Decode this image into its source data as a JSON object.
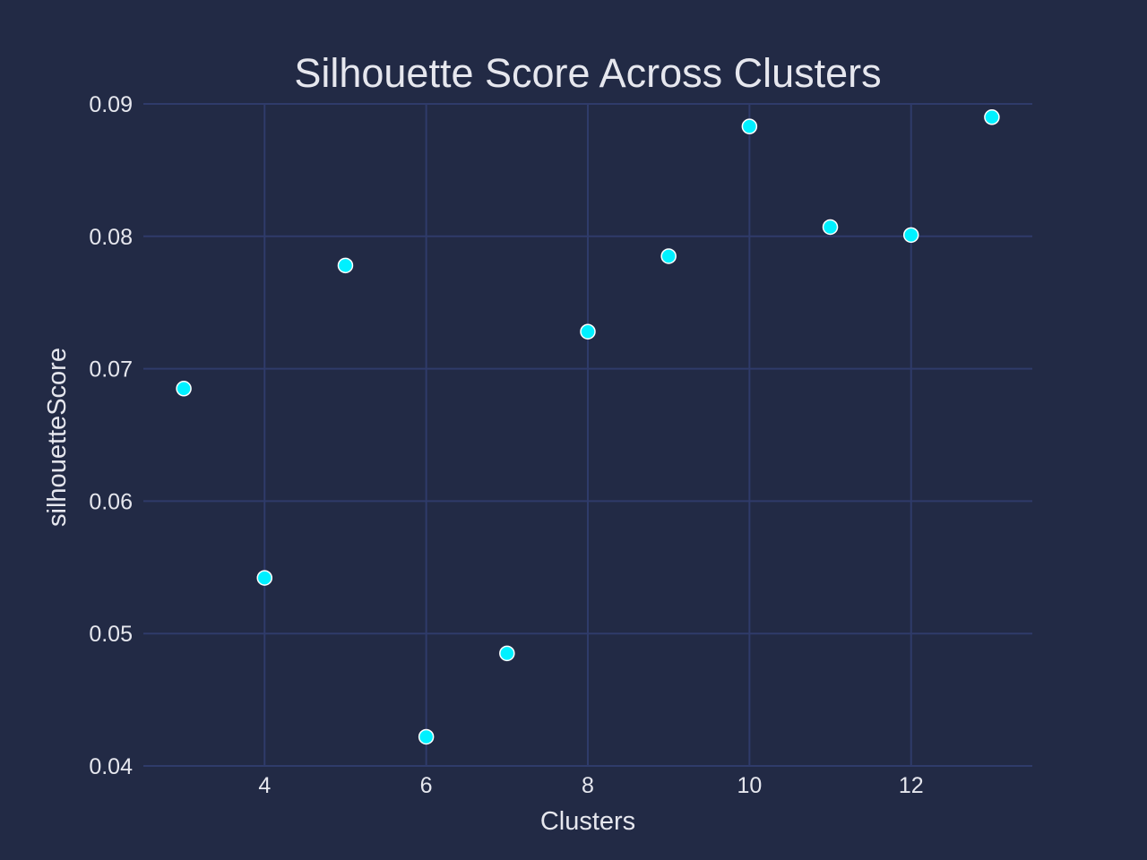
{
  "chart_data": {
    "type": "scatter",
    "title": "Silhouette Score Across Clusters",
    "xlabel": "Clusters",
    "ylabel": "silhouetteScore",
    "x": [
      3,
      4,
      5,
      6,
      7,
      8,
      9,
      10,
      11,
      12,
      13
    ],
    "y": [
      0.0685,
      0.0542,
      0.0778,
      0.0422,
      0.0485,
      0.0728,
      0.0785,
      0.0883,
      0.0807,
      0.0801,
      0.089
    ],
    "xlim": [
      2.5,
      13.5
    ],
    "ylim": [
      0.04,
      0.09
    ],
    "xticks": [
      4,
      6,
      8,
      10,
      12
    ],
    "xtick_labels": [
      "4",
      "6",
      "8",
      "10",
      "12"
    ],
    "yticks": [
      0.04,
      0.05,
      0.06,
      0.07,
      0.08,
      0.09
    ],
    "ytick_labels": [
      "0.04",
      "0.05",
      "0.06",
      "0.07",
      "0.08",
      "0.09"
    ],
    "grid": true,
    "legend": "none",
    "colors": {
      "background": "#222a45",
      "grid": "#2f3b6a",
      "marker": "#00f0ff",
      "marker_edge": "#ffffff",
      "text": "#e6e7ee"
    }
  }
}
